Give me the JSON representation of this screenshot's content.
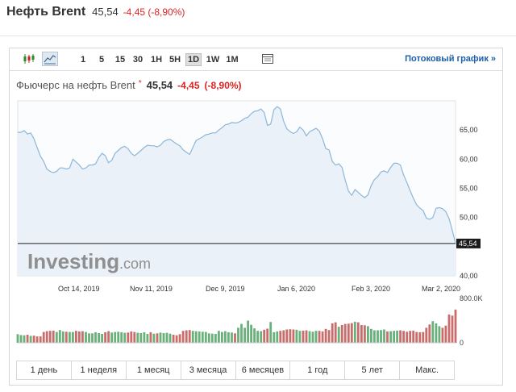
{
  "header": {
    "title": "Нефть Brent",
    "price": "45,54",
    "change": "-4,45 (-8,90%)"
  },
  "toolbar": {
    "icons": [
      "candlestick-chart-icon",
      "area-chart-icon",
      "settings-panel-icon"
    ],
    "intervals": [
      "1",
      "5",
      "15",
      "30",
      "1H",
      "5H",
      "1D",
      "1W",
      "1M"
    ],
    "active_interval": "1D",
    "stream_link": "Потоковый график »"
  },
  "subheader": {
    "name": "Фьючерс на нефть Brent",
    "star": "*",
    "price": "45,54",
    "change": "-4,45",
    "change_pct": "(-8,90%)"
  },
  "watermark": {
    "brand": "Investing",
    "suffix": ".com"
  },
  "colors": {
    "line": "#8db6d8",
    "area": "#eaf1f8",
    "price_marker_bg": "#1b1b1b",
    "volume_up": "#69b07b",
    "volume_down": "#c96c6c",
    "negative": "#dd2222",
    "link": "#1c5ea9"
  },
  "chart_data": {
    "type": "area",
    "x_tick_labels": [
      "Oct 14, 2019",
      "Nov 11, 2019",
      "Dec 9, 2019",
      "Jan 6, 2020",
      "Feb 3, 2020",
      "Mar 2, 2020"
    ],
    "y_tick_labels": [
      "65,00",
      "60,00",
      "55,00",
      "50,00",
      "40,00"
    ],
    "ylim": [
      40,
      70
    ],
    "last_price_label": "45,54",
    "last_price": 45.54,
    "series": [
      {
        "values": [
          64.6,
          64.6,
          64.9,
          64.3,
          64.5,
          63.5,
          62.0,
          60.5,
          59.6,
          58.3,
          57.9,
          57.7,
          57.9,
          58.5,
          58.5,
          58.3,
          58.5,
          60.0,
          59.5,
          59.0,
          58.3,
          58.5,
          59.0,
          59.0,
          59.2,
          60.3,
          61.0,
          60.6,
          59.4,
          59.8,
          61.0,
          61.5,
          62.0,
          62.2,
          61.8,
          61.0,
          60.6,
          61.0,
          61.5,
          62.0,
          62.4,
          62.3,
          62.3,
          62.1,
          62.4,
          63.0,
          63.3,
          63.4,
          63.0,
          62.6,
          62.3,
          61.6,
          61.2,
          60.8,
          62.0,
          63.2,
          63.5,
          63.8,
          64.2,
          64.3,
          64.5,
          64.5,
          65.0,
          65.4,
          65.9,
          66.0,
          66.3,
          66.2,
          66.3,
          66.6,
          67.0,
          67.2,
          67.8,
          68.2,
          68.3,
          68.6,
          68.0,
          65.8,
          66.0,
          68.5,
          69.0,
          68.6,
          66.5,
          65.2,
          64.7,
          64.4,
          64.7,
          65.5,
          65.0,
          64.0,
          64.7,
          65.0,
          65.3,
          64.8,
          63.5,
          61.8,
          61.6,
          59.6,
          59.0,
          59.2,
          58.6,
          56.4,
          54.5,
          53.8,
          54.8,
          54.3,
          53.8,
          53.4,
          53.9,
          55.5,
          56.5,
          57.0,
          57.8,
          58.0,
          57.7,
          58.6,
          59.3,
          59.3,
          59.0,
          57.3,
          56.0,
          54.6,
          53.3,
          52.2,
          51.6,
          51.2,
          49.9,
          49.7,
          50.0,
          51.6,
          51.7,
          51.5,
          51.0,
          49.8,
          47.8,
          45.54
        ],
        "volume": [
          155,
          140,
          135,
          145,
          125,
          130,
          115,
          115,
          195,
          210,
          215,
          220,
          195,
          230,
          205,
          200,
          195,
          195,
          215,
          205,
          210,
          195,
          170,
          170,
          190,
          175,
          160,
          190,
          210,
          185,
          195,
          200,
          190,
          180,
          185,
          205,
          195,
          180,
          175,
          190,
          160,
          190,
          165,
          170,
          185,
          175,
          180,
          165,
          145,
          135,
          155,
          215,
          225,
          230,
          215,
          210,
          205,
          200,
          195,
          170,
          165,
          160,
          215,
          195,
          210,
          190,
          185,
          170,
          270,
          340,
          270,
          400,
          325,
          260,
          215,
          210,
          235,
          255,
          375,
          190,
          205,
          215,
          225,
          240,
          245,
          240,
          235,
          215,
          220,
          225,
          210,
          200,
          215,
          215,
          205,
          250,
          230,
          350,
          370,
          290,
          320,
          340,
          345,
          355,
          380,
          370,
          320,
          315,
          300,
          250,
          225,
          225,
          230,
          240,
          205,
          210,
          215,
          220,
          225,
          215,
          200,
          215,
          220,
          195,
          190,
          195,
          270,
          330,
          390,
          350,
          300,
          270,
          310,
          510,
          490,
          600
        ]
      }
    ]
  },
  "periods": [
    "1 день",
    "1 неделя",
    "1 месяц",
    "3 месяца",
    "6 месяцев",
    "1 год",
    "5 лет",
    "Макс."
  ],
  "volume_axis": {
    "max_label": "800.0K",
    "zero_label": "0"
  }
}
